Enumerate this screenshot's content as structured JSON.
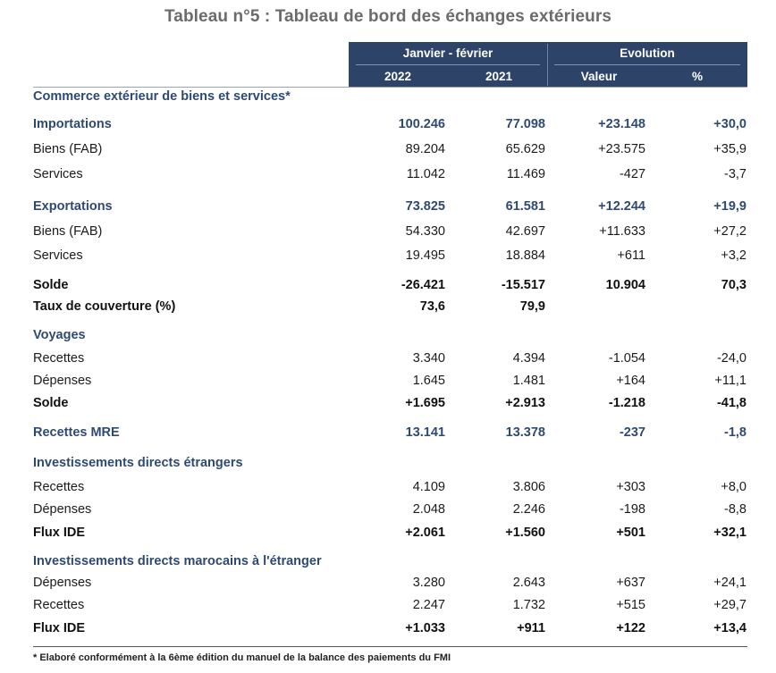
{
  "title": "Tableau n°5 : Tableau de bord des échanges extérieurs",
  "header": {
    "period": "Janvier - février",
    "evolution": "Evolution",
    "year1": "2022",
    "year2": "2021",
    "value": "Valeur",
    "pct": "%"
  },
  "rows": [
    {
      "label": "Commerce extérieur de biens et services*",
      "style": "section",
      "c1": "",
      "c2": "",
      "c3": "",
      "c4": ""
    },
    {
      "label": "Importations",
      "style": "accent",
      "c1": "100.246",
      "c2": "77.098",
      "c3": "+23.148",
      "c4": "+30,0"
    },
    {
      "label": "Biens (FAB)",
      "style": "normal",
      "c1": "89.204",
      "c2": "65.629",
      "c3": "+23.575",
      "c4": "+35,9"
    },
    {
      "label": "Services",
      "style": "normal",
      "c1": "11.042",
      "c2": "11.469",
      "c3": "-427",
      "c4": "-3,7"
    },
    {
      "label": "Exportations",
      "style": "accent",
      "c1": "73.825",
      "c2": "61.581",
      "c3": "+12.244",
      "c4": "+19,9"
    },
    {
      "label": "Biens (FAB)",
      "style": "normal",
      "c1": "54.330",
      "c2": "42.697",
      "c3": "+11.633",
      "c4": "+27,2"
    },
    {
      "label": "Services",
      "style": "normal",
      "c1": "19.495",
      "c2": "18.884",
      "c3": "+611",
      "c4": "+3,2"
    },
    {
      "label": "Solde",
      "style": "bold",
      "c1": "-26.421",
      "c2": "-15.517",
      "c3": "10.904",
      "c4": "70,3"
    },
    {
      "label": "Taux de couverture (%)",
      "style": "bold",
      "c1": "73,6",
      "c2": "79,9",
      "c3": "",
      "c4": ""
    },
    {
      "label": "Voyages",
      "style": "section",
      "c1": "",
      "c2": "",
      "c3": "",
      "c4": ""
    },
    {
      "label": "Recettes",
      "style": "normal",
      "c1": "3.340",
      "c2": "4.394",
      "c3": "-1.054",
      "c4": "-24,0"
    },
    {
      "label": "Dépenses",
      "style": "normal",
      "c1": "1.645",
      "c2": "1.481",
      "c3": "+164",
      "c4": "+11,1"
    },
    {
      "label": "Solde",
      "style": "bold",
      "c1": "+1.695",
      "c2": "+2.913",
      "c3": "-1.218",
      "c4": "-41,8"
    },
    {
      "label": "Recettes MRE",
      "style": "accent",
      "c1": "13.141",
      "c2": "13.378",
      "c3": "-237",
      "c4": "-1,8"
    },
    {
      "label": "Investissements directs étrangers",
      "style": "section",
      "c1": "",
      "c2": "",
      "c3": "",
      "c4": ""
    },
    {
      "label": "Recettes",
      "style": "normal",
      "c1": "4.109",
      "c2": "3.806",
      "c3": "+303",
      "c4": "+8,0"
    },
    {
      "label": "Dépenses",
      "style": "normal",
      "c1": "2.048",
      "c2": "2.246",
      "c3": "-198",
      "c4": "-8,8"
    },
    {
      "label": "Flux IDE",
      "style": "bold",
      "c1": "+2.061",
      "c2": "+1.560",
      "c3": "+501",
      "c4": "+32,1"
    },
    {
      "label": "Investissements directs marocains à l'étranger",
      "style": "section",
      "c1": "",
      "c2": "",
      "c3": "",
      "c4": ""
    },
    {
      "label": "Dépenses",
      "style": "normal",
      "c1": "3.280",
      "c2": "2.643",
      "c3": "+637",
      "c4": "+24,1"
    },
    {
      "label": "Recettes",
      "style": "normal",
      "c1": "2.247",
      "c2": "1.732",
      "c3": "+515",
      "c4": "+29,7"
    },
    {
      "label": "Flux IDE",
      "style": "bold",
      "c1": "+1.033",
      "c2": "+911",
      "c3": "+122",
      "c4": "+13,4"
    }
  ],
  "footnote": "* Elaboré conformément à la 6ème édition du manuel de la balance des paiements du FMI",
  "colors": {
    "header_bg": "#2e4368",
    "accent": "#2e4a73",
    "title": "#6b6b6b"
  }
}
